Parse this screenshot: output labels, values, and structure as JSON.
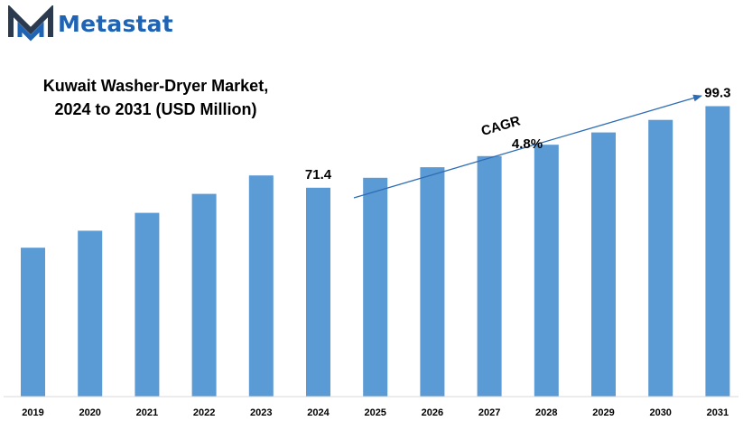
{
  "brand": {
    "name": "Metastat",
    "logo_icon": "metastat-m-logo-icon",
    "color": "#1e63b4"
  },
  "annotation": {
    "cagr_label": "CAGR",
    "cagr_value": "4.8%"
  },
  "chart_data": {
    "type": "bar",
    "title": [
      "Kuwait Washer-Dryer Market,",
      "2024 to 2031 (USD Million)"
    ],
    "categories": [
      "2019",
      "2020",
      "2021",
      "2022",
      "2023",
      "2024",
      "2025",
      "2026",
      "2027",
      "2028",
      "2029",
      "2030",
      "2031"
    ],
    "values": [
      50.9,
      56.7,
      62.8,
      69.3,
      75.6,
      71.4,
      74.8,
      78.4,
      82.2,
      86.1,
      90.3,
      94.6,
      99.3
    ],
    "data_labels": {
      "5": "71.4",
      "12": "99.3"
    },
    "bar_color": "#5b9bd5",
    "ylim": [
      0,
      105
    ],
    "y_axis_visible": false,
    "grid": false,
    "legend": "none"
  }
}
